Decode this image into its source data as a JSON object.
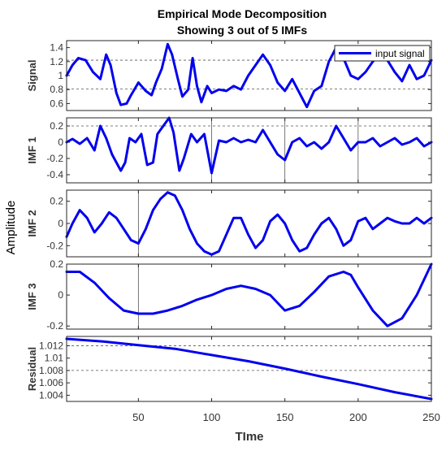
{
  "chart_data": {
    "type": "line",
    "title": "Empirical Mode Decomposition",
    "subtitle": "Showing 3 out of 5 IMFs",
    "xlabel": "TIme",
    "ylabel": "Amplitude",
    "xlim": [
      1,
      250
    ],
    "x_ticks": [
      "50",
      "100",
      "150",
      "200",
      "250"
    ],
    "colors": {
      "signal": "#0000ee",
      "axes": "#262626",
      "grid": "#555555"
    },
    "legend": {
      "label": "input signal",
      "placement": "top-right"
    },
    "panels": [
      {
        "name": "Signal",
        "ylim": [
          0.5,
          1.5
        ],
        "yticks": [
          "0.6",
          "0.8",
          "1",
          "1.2",
          "1.4"
        ],
        "yticks_values": [
          0.6,
          0.8,
          1.0,
          1.2,
          1.4
        ],
        "ref_lines": [
          1.22,
          0.81
        ],
        "x": [
          1,
          5,
          9,
          14,
          19,
          24,
          28,
          31,
          35,
          38,
          42,
          45,
          50,
          55,
          59,
          62,
          66,
          70,
          73,
          77,
          80,
          84,
          87,
          90,
          93,
          97,
          100,
          105,
          110,
          115,
          120,
          125,
          130,
          135,
          140,
          145,
          150,
          155,
          160,
          165,
          170,
          175,
          180,
          185,
          190,
          195,
          200,
          205,
          210,
          215,
          220,
          225,
          230,
          235,
          240,
          245,
          250
        ],
        "y": [
          1.0,
          1.15,
          1.25,
          1.22,
          1.05,
          0.95,
          1.3,
          1.15,
          0.75,
          0.58,
          0.6,
          0.72,
          0.9,
          0.78,
          0.72,
          0.9,
          1.1,
          1.45,
          1.3,
          0.95,
          0.7,
          0.8,
          1.25,
          0.85,
          0.62,
          0.85,
          0.75,
          0.8,
          0.78,
          0.85,
          0.8,
          1.0,
          1.15,
          1.3,
          1.15,
          0.9,
          0.78,
          0.95,
          0.75,
          0.55,
          0.78,
          0.85,
          1.2,
          1.4,
          1.25,
          1.0,
          0.95,
          1.05,
          1.2,
          1.3,
          1.22,
          1.05,
          0.92,
          1.15,
          0.95,
          1.0,
          1.22
        ]
      },
      {
        "name": "IMF 1",
        "ylim": [
          -0.5,
          0.3
        ],
        "yticks": [
          "0.2",
          "0",
          "-0.2",
          "-0.4"
        ],
        "yticks_values": [
          0.2,
          0,
          -0.2,
          -0.4
        ],
        "ref_lines": [
          0.2
        ],
        "x": [
          1,
          5,
          10,
          15,
          20,
          24,
          28,
          32,
          38,
          41,
          44,
          48,
          52,
          56,
          60,
          63,
          67,
          71,
          74,
          78,
          81,
          86,
          90,
          95,
          100,
          105,
          110,
          115,
          120,
          125,
          130,
          135,
          140,
          145,
          150,
          155,
          160,
          165,
          170,
          175,
          180,
          185,
          190,
          195,
          200,
          205,
          210,
          215,
          220,
          225,
          230,
          235,
          240,
          245,
          250
        ],
        "y": [
          0.0,
          0.04,
          -0.02,
          0.05,
          -0.1,
          0.2,
          0.05,
          -0.15,
          -0.35,
          -0.25,
          0.05,
          0.0,
          0.1,
          -0.28,
          -0.25,
          0.1,
          0.2,
          0.3,
          0.12,
          -0.35,
          -0.2,
          0.1,
          0.0,
          0.1,
          -0.38,
          0.02,
          0.0,
          0.05,
          0.0,
          0.03,
          0.0,
          0.15,
          0.0,
          -0.15,
          -0.22,
          0.0,
          0.05,
          -0.05,
          0.0,
          -0.08,
          0.0,
          0.2,
          0.05,
          -0.1,
          0.0,
          0.0,
          0.05,
          -0.05,
          0.0,
          0.05,
          -0.03,
          0.0,
          0.05,
          -0.05,
          0.0
        ]
      },
      {
        "name": "IMF 2",
        "ylim": [
          -0.3,
          0.3
        ],
        "yticks": [
          "0.2",
          "0",
          "-0.2"
        ],
        "yticks_values": [
          0.2,
          0,
          -0.2
        ],
        "ref_lines": [],
        "x": [
          1,
          5,
          10,
          15,
          20,
          25,
          30,
          35,
          40,
          45,
          50,
          55,
          60,
          65,
          70,
          75,
          80,
          85,
          90,
          95,
          100,
          105,
          110,
          115,
          120,
          125,
          130,
          135,
          140,
          145,
          150,
          155,
          160,
          165,
          170,
          175,
          180,
          185,
          190,
          195,
          200,
          205,
          210,
          215,
          220,
          225,
          230,
          235,
          240,
          245,
          250
        ],
        "y": [
          -0.12,
          0.0,
          0.12,
          0.05,
          -0.08,
          0.0,
          0.1,
          0.05,
          -0.05,
          -0.15,
          -0.18,
          -0.05,
          0.12,
          0.22,
          0.28,
          0.25,
          0.12,
          -0.05,
          -0.18,
          -0.25,
          -0.28,
          -0.25,
          -0.1,
          0.05,
          0.05,
          -0.1,
          -0.22,
          -0.15,
          0.02,
          0.08,
          0.0,
          -0.15,
          -0.25,
          -0.22,
          -0.1,
          0.0,
          0.05,
          -0.05,
          -0.2,
          -0.15,
          0.02,
          0.05,
          -0.05,
          0.0,
          0.05,
          0.02,
          0.0,
          0.0,
          0.05,
          0.0,
          0.05
        ]
      },
      {
        "name": "IMF 3",
        "ylim": [
          -0.22,
          0.2
        ],
        "yticks": [
          "0.2",
          "0",
          "-0.2"
        ],
        "yticks_values": [
          0.2,
          0,
          -0.2
        ],
        "ref_lines": [],
        "x": [
          1,
          10,
          20,
          30,
          40,
          50,
          60,
          70,
          80,
          90,
          100,
          110,
          120,
          130,
          140,
          150,
          160,
          170,
          180,
          190,
          195,
          200,
          210,
          220,
          230,
          240,
          250
        ],
        "y": [
          0.15,
          0.15,
          0.08,
          -0.02,
          -0.1,
          -0.12,
          -0.12,
          -0.1,
          -0.07,
          -0.03,
          0.0,
          0.04,
          0.06,
          0.04,
          0.0,
          -0.1,
          -0.07,
          0.02,
          0.12,
          0.15,
          0.13,
          0.05,
          -0.1,
          -0.2,
          -0.15,
          0.0,
          0.2
        ]
      },
      {
        "name": "Residual",
        "ylim": [
          1.003,
          1.0135
        ],
        "yticks": [
          "1.012",
          "1.01",
          "1.008",
          "1.006",
          "1.004"
        ],
        "yticks_values": [
          1.012,
          1.01,
          1.008,
          1.006,
          1.004
        ],
        "ref_lines": [
          1.012,
          1.008
        ],
        "x": [
          1,
          25,
          50,
          75,
          100,
          125,
          150,
          175,
          200,
          225,
          250
        ],
        "y": [
          1.0131,
          1.0127,
          1.0121,
          1.0115,
          1.0105,
          1.0095,
          1.0083,
          1.007,
          1.0058,
          1.0045,
          1.0034
        ]
      }
    ]
  }
}
